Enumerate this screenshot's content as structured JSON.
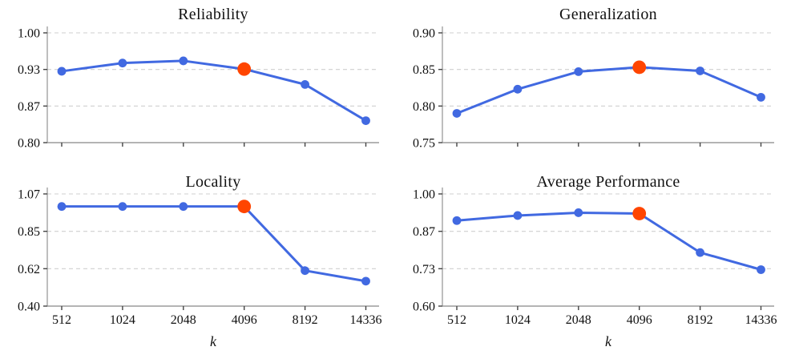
{
  "figure": {
    "xlabel": "k",
    "categories": [
      "512",
      "1024",
      "2048",
      "4096",
      "8192",
      "14336"
    ],
    "x_values": [
      512,
      1024,
      2048,
      4096,
      8192,
      14336
    ],
    "highlight_category": "4096",
    "colors": {
      "line": "#4169E1",
      "highlight": "#FF4500",
      "grid": "#cfcfcf",
      "spine": "#9b9b9b",
      "tick": "#444444",
      "text": "#111111",
      "background": "#ffffff"
    }
  },
  "chart_data": [
    {
      "type": "line",
      "title": "Reliability",
      "x": [
        512,
        1024,
        2048,
        4096,
        8192,
        14336
      ],
      "values": [
        0.93,
        0.945,
        0.949,
        0.934,
        0.906,
        0.84
      ],
      "ylim": [
        0.8,
        1.0
      ],
      "yticks": [
        "0.80",
        "0.87",
        "0.93",
        "1.00"
      ],
      "xlabel": "",
      "show_xticklabels": false,
      "grid": true,
      "highlight_x": 4096
    },
    {
      "type": "line",
      "title": "Generalization",
      "x": [
        512,
        1024,
        2048,
        4096,
        8192,
        14336
      ],
      "values": [
        0.79,
        0.823,
        0.847,
        0.853,
        0.848,
        0.812
      ],
      "ylim": [
        0.75,
        0.9
      ],
      "yticks": [
        "0.75",
        "0.80",
        "0.85",
        "0.90"
      ],
      "xlabel": "",
      "show_xticklabels": false,
      "grid": true,
      "highlight_x": 4096
    },
    {
      "type": "line",
      "title": "Locality",
      "x": [
        512,
        1024,
        2048,
        4096,
        8192,
        14336
      ],
      "values": [
        0.995,
        0.995,
        0.995,
        0.995,
        0.612,
        0.549
      ],
      "ylim": [
        0.4,
        1.07
      ],
      "yticks": [
        "0.40",
        "0.62",
        "0.85",
        "1.07"
      ],
      "xlabel": "k",
      "show_xticklabels": true,
      "grid": true,
      "highlight_x": 4096
    },
    {
      "type": "line",
      "title": "Average Performance",
      "x": [
        512,
        1024,
        2048,
        4096,
        8192,
        14336
      ],
      "values": [
        0.905,
        0.923,
        0.933,
        0.93,
        0.791,
        0.73
      ],
      "ylim": [
        0.6,
        1.0
      ],
      "yticks": [
        "0.60",
        "0.73",
        "0.87",
        "1.00"
      ],
      "xlabel": "k",
      "show_xticklabels": true,
      "grid": true,
      "highlight_x": 4096
    }
  ]
}
